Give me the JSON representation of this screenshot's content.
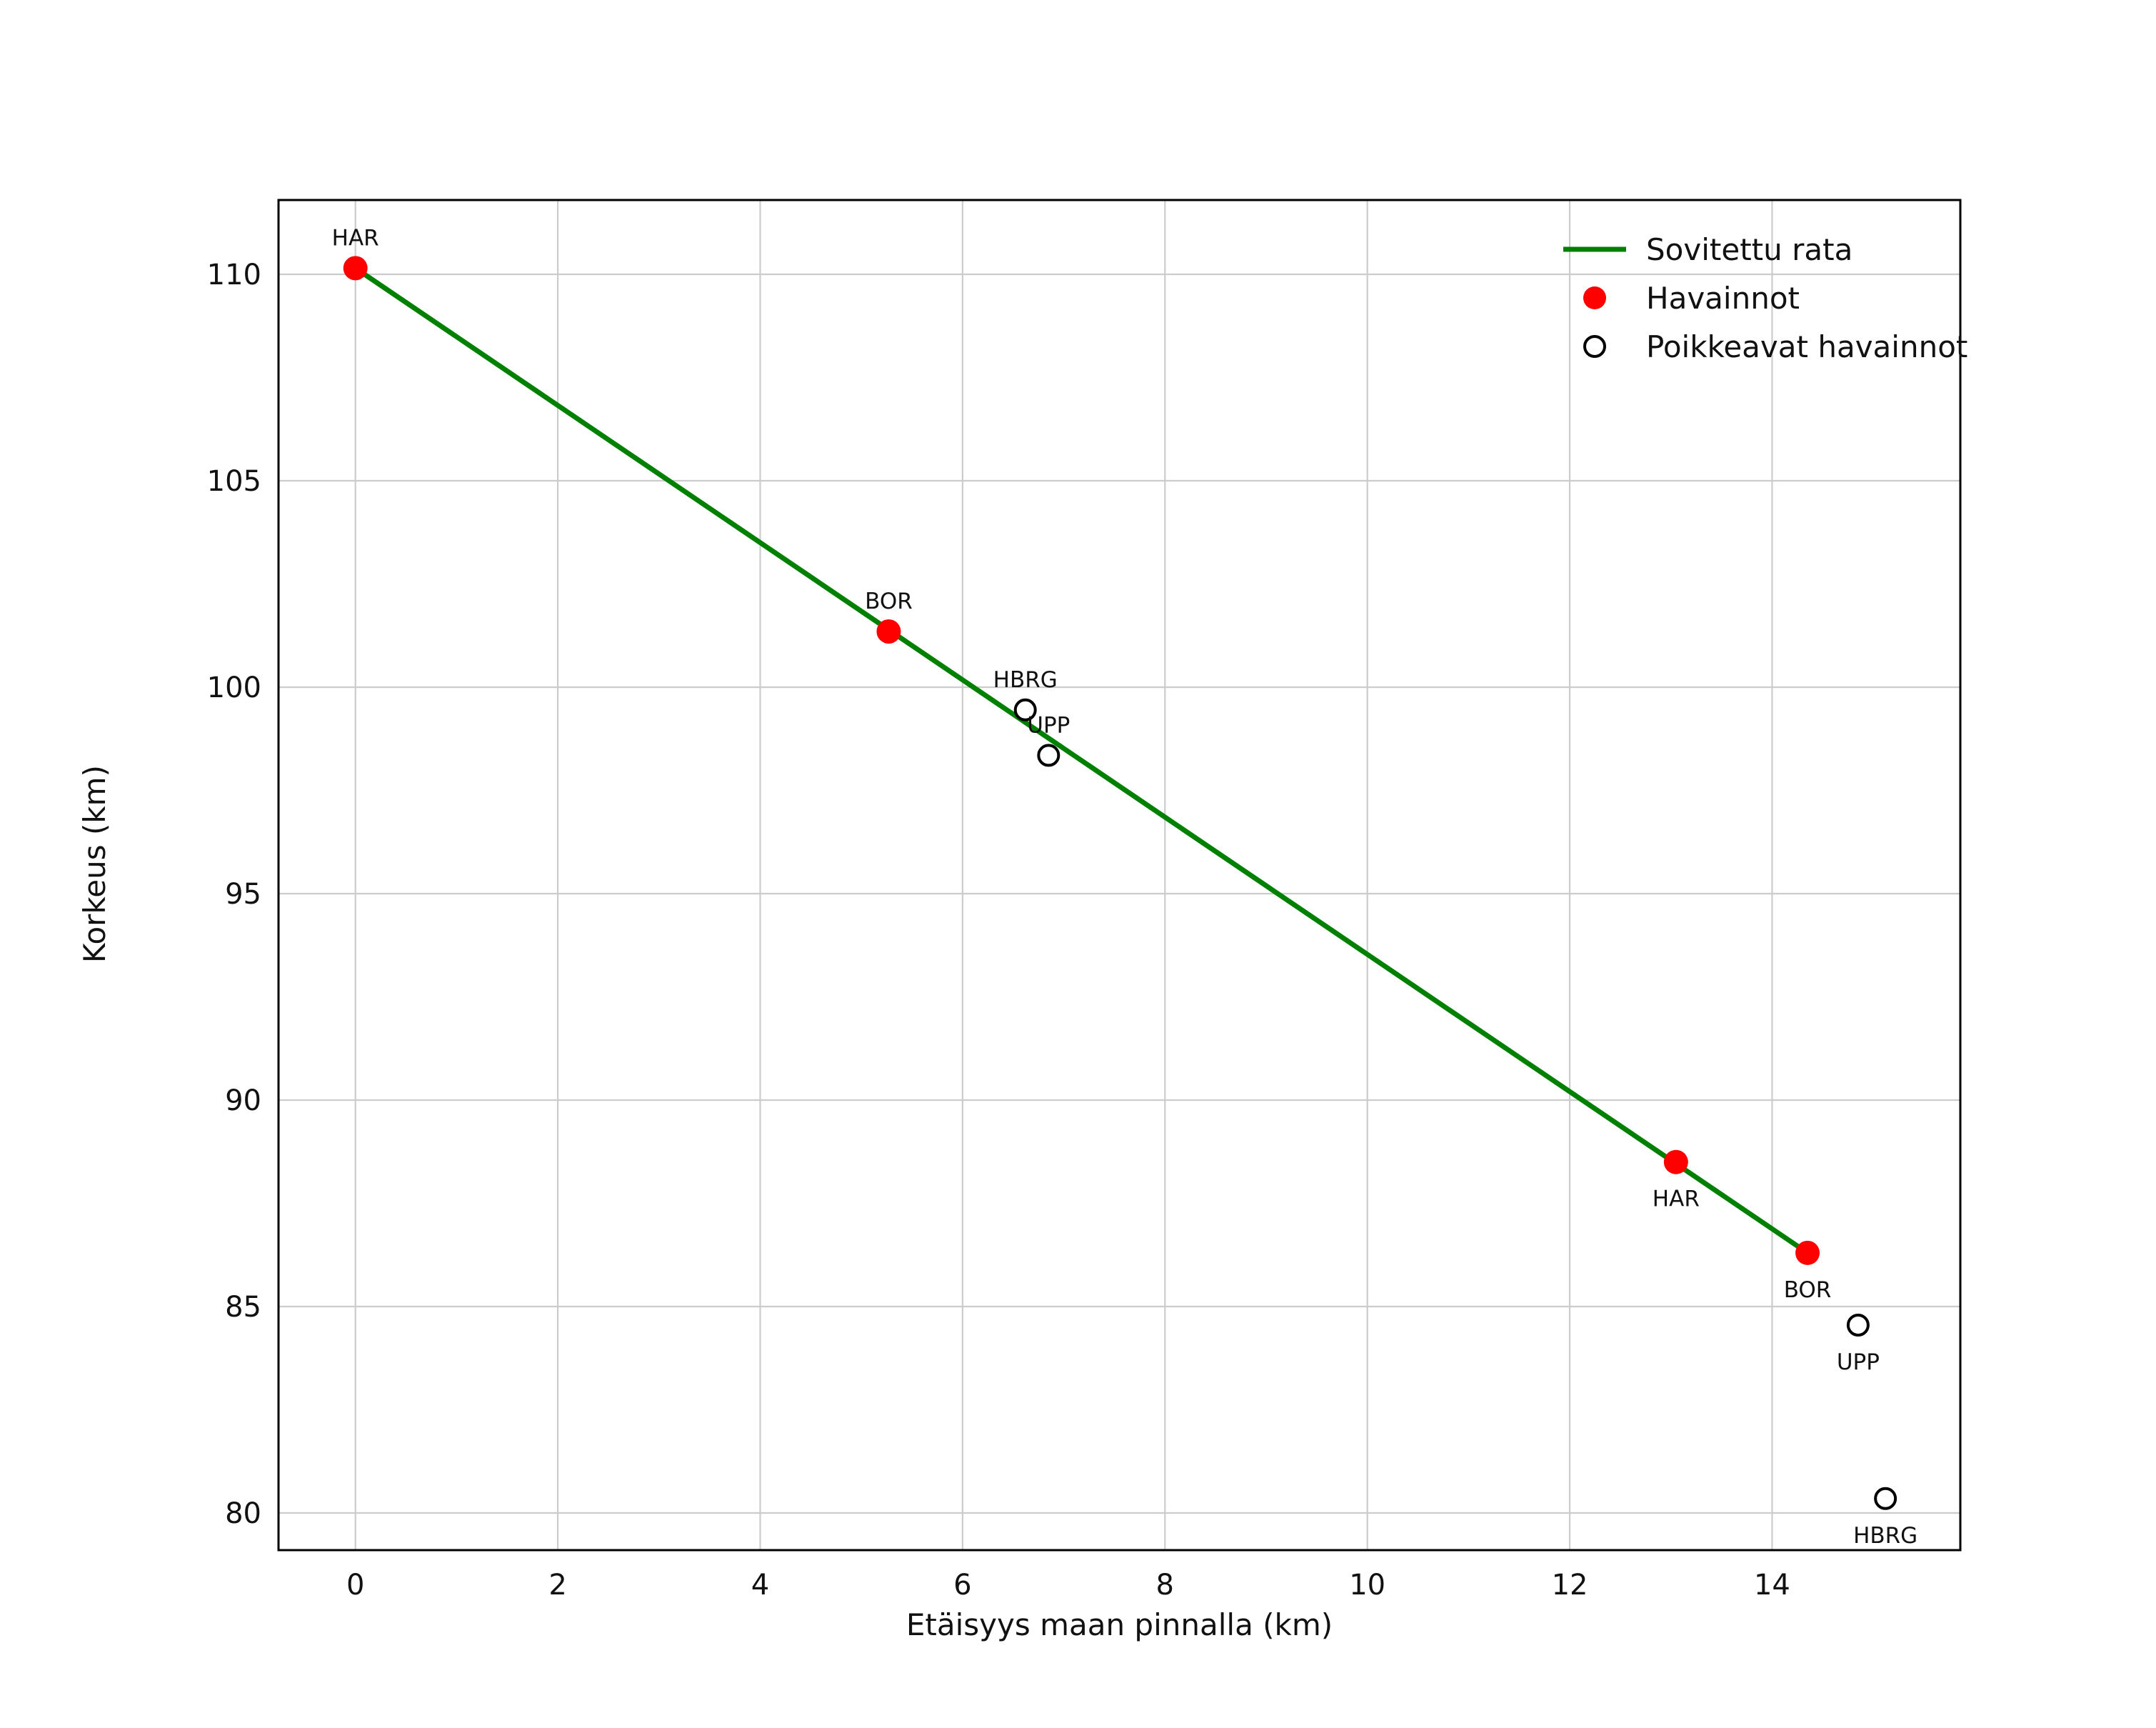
{
  "figure": {
    "background": "#ffffff",
    "grid_color": "#cccccc",
    "frame_color": "#000000",
    "text_color": "#111111"
  },
  "chart_data": {
    "type": "scatter",
    "title": "",
    "xlabel": "Etäisyys maan pinnalla (km)",
    "ylabel": "Korkeus (km)",
    "xlim": [
      -0.76,
      15.86
    ],
    "ylim": [
      79.1,
      111.8
    ],
    "xticks": [
      0,
      2,
      4,
      6,
      8,
      10,
      12,
      14
    ],
    "yticks": [
      80,
      85,
      90,
      95,
      100,
      105,
      110
    ],
    "grid": true,
    "legend_position": "upper right",
    "fit_line": {
      "label": "Sovitettu rata",
      "color": "#008000",
      "points": [
        [
          0,
          110.15
        ],
        [
          14.35,
          86.3
        ]
      ]
    },
    "observations": {
      "label": "Havainnot",
      "color": "#ff0000",
      "marker": "filled-circle",
      "points": [
        {
          "x": 0.0,
          "y": 110.15,
          "station": "HAR",
          "label_side": "above"
        },
        {
          "x": 5.27,
          "y": 101.35,
          "station": "BOR",
          "label_side": "above"
        },
        {
          "x": 13.05,
          "y": 88.5,
          "station": "HAR",
          "label_side": "below"
        },
        {
          "x": 14.35,
          "y": 86.3,
          "station": "BOR",
          "label_side": "below"
        }
      ]
    },
    "outliers": {
      "label": "Poikkeavat havainnot",
      "color": "#000000",
      "marker": "open-circle",
      "points": [
        {
          "x": 6.62,
          "y": 99.45,
          "station": "HBRG",
          "label_side": "above"
        },
        {
          "x": 6.85,
          "y": 98.35,
          "station": "UPP",
          "label_side": "above"
        },
        {
          "x": 14.85,
          "y": 84.55,
          "station": "UPP",
          "label_side": "below"
        },
        {
          "x": 15.12,
          "y": 80.35,
          "station": "HBRG",
          "label_side": "below"
        }
      ]
    }
  }
}
